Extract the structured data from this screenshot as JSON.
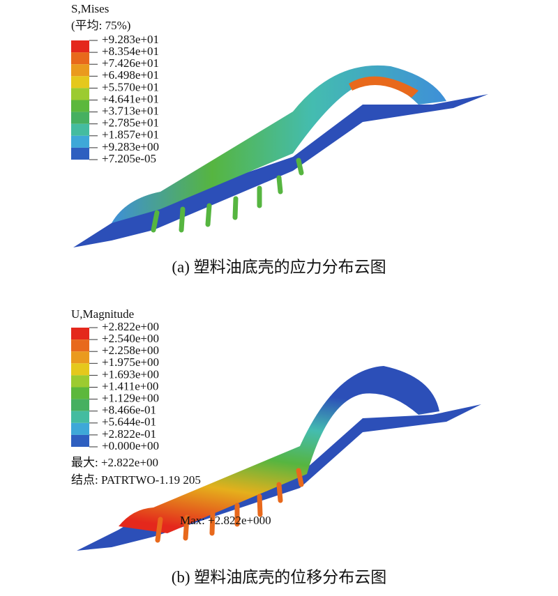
{
  "panels": [
    {
      "legend": {
        "title": "S,Mises",
        "subtitle": "(平均: 75%)",
        "labels": [
          "+9.283e+01",
          "+8.354e+01",
          "+7.426e+01",
          "+6.498e+01",
          "+5.570e+01",
          "+4.641e+01",
          "+3.713e+01",
          "+2.785e+01",
          "+1.857e+01",
          "+9.283e+00",
          "+7.205e-05"
        ]
      },
      "caption": "(a) 塑料油底壳的应力分布云图"
    },
    {
      "legend": {
        "title": "U,Magnitude",
        "labels": [
          "+2.822e+00",
          "+2.540e+00",
          "+2.258e+00",
          "+1.975e+00",
          "+1.693e+00",
          "+1.411e+00",
          "+1.129e+00",
          "+8.466e-01",
          "+5.644e-01",
          "+2.822e-01",
          "+0.000e+00"
        ]
      },
      "max_label": "最大: +2.822e+00",
      "node_label": "结点: PATRTWO-1.19 205",
      "annotation": "Max: +2.822e+000",
      "caption": "(b) 塑料油底壳的位移分布云图"
    }
  ]
}
